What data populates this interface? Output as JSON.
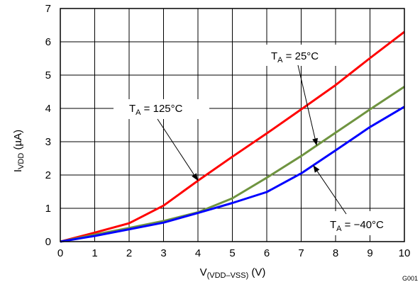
{
  "chart_data": {
    "type": "line",
    "xlabel": {
      "main": "V",
      "sub": "(VDD–VSS)",
      "suffix": " (V)"
    },
    "ylabel": {
      "main": "I",
      "sub": "VDD",
      "suffix": " (µA)"
    },
    "xlim": [
      0,
      10
    ],
    "ylim": [
      0,
      7
    ],
    "x_ticks": [
      "0",
      "1",
      "2",
      "3",
      "4",
      "5",
      "6",
      "7",
      "8",
      "9",
      "10"
    ],
    "y_ticks": [
      "0",
      "1",
      "2",
      "3",
      "4",
      "5",
      "6",
      "7"
    ],
    "grid": true,
    "x": [
      0,
      1,
      2,
      3,
      4,
      5,
      6,
      7,
      8,
      9,
      10
    ],
    "series": [
      {
        "label": {
          "main": "T",
          "sub": "A",
          "suffix": " = 125°C"
        },
        "color": "#ff0000",
        "values": [
          0,
          0.27,
          0.55,
          1.08,
          1.83,
          2.55,
          3.25,
          3.97,
          4.7,
          5.51,
          6.3
        ]
      },
      {
        "label": {
          "main": "T",
          "sub": "A",
          "suffix": " = 25°C"
        },
        "color": "#6f9440",
        "values": [
          0,
          0.21,
          0.41,
          0.62,
          0.88,
          1.3,
          1.92,
          2.57,
          3.27,
          3.97,
          4.65
        ]
      },
      {
        "label": {
          "main": "T",
          "sub": "A",
          "suffix": " = −40°C"
        },
        "color": "#0000ff",
        "values": [
          0,
          0.17,
          0.37,
          0.57,
          0.86,
          1.16,
          1.49,
          2.05,
          2.74,
          3.44,
          4.05
        ]
      }
    ],
    "figure_code": "G001"
  }
}
